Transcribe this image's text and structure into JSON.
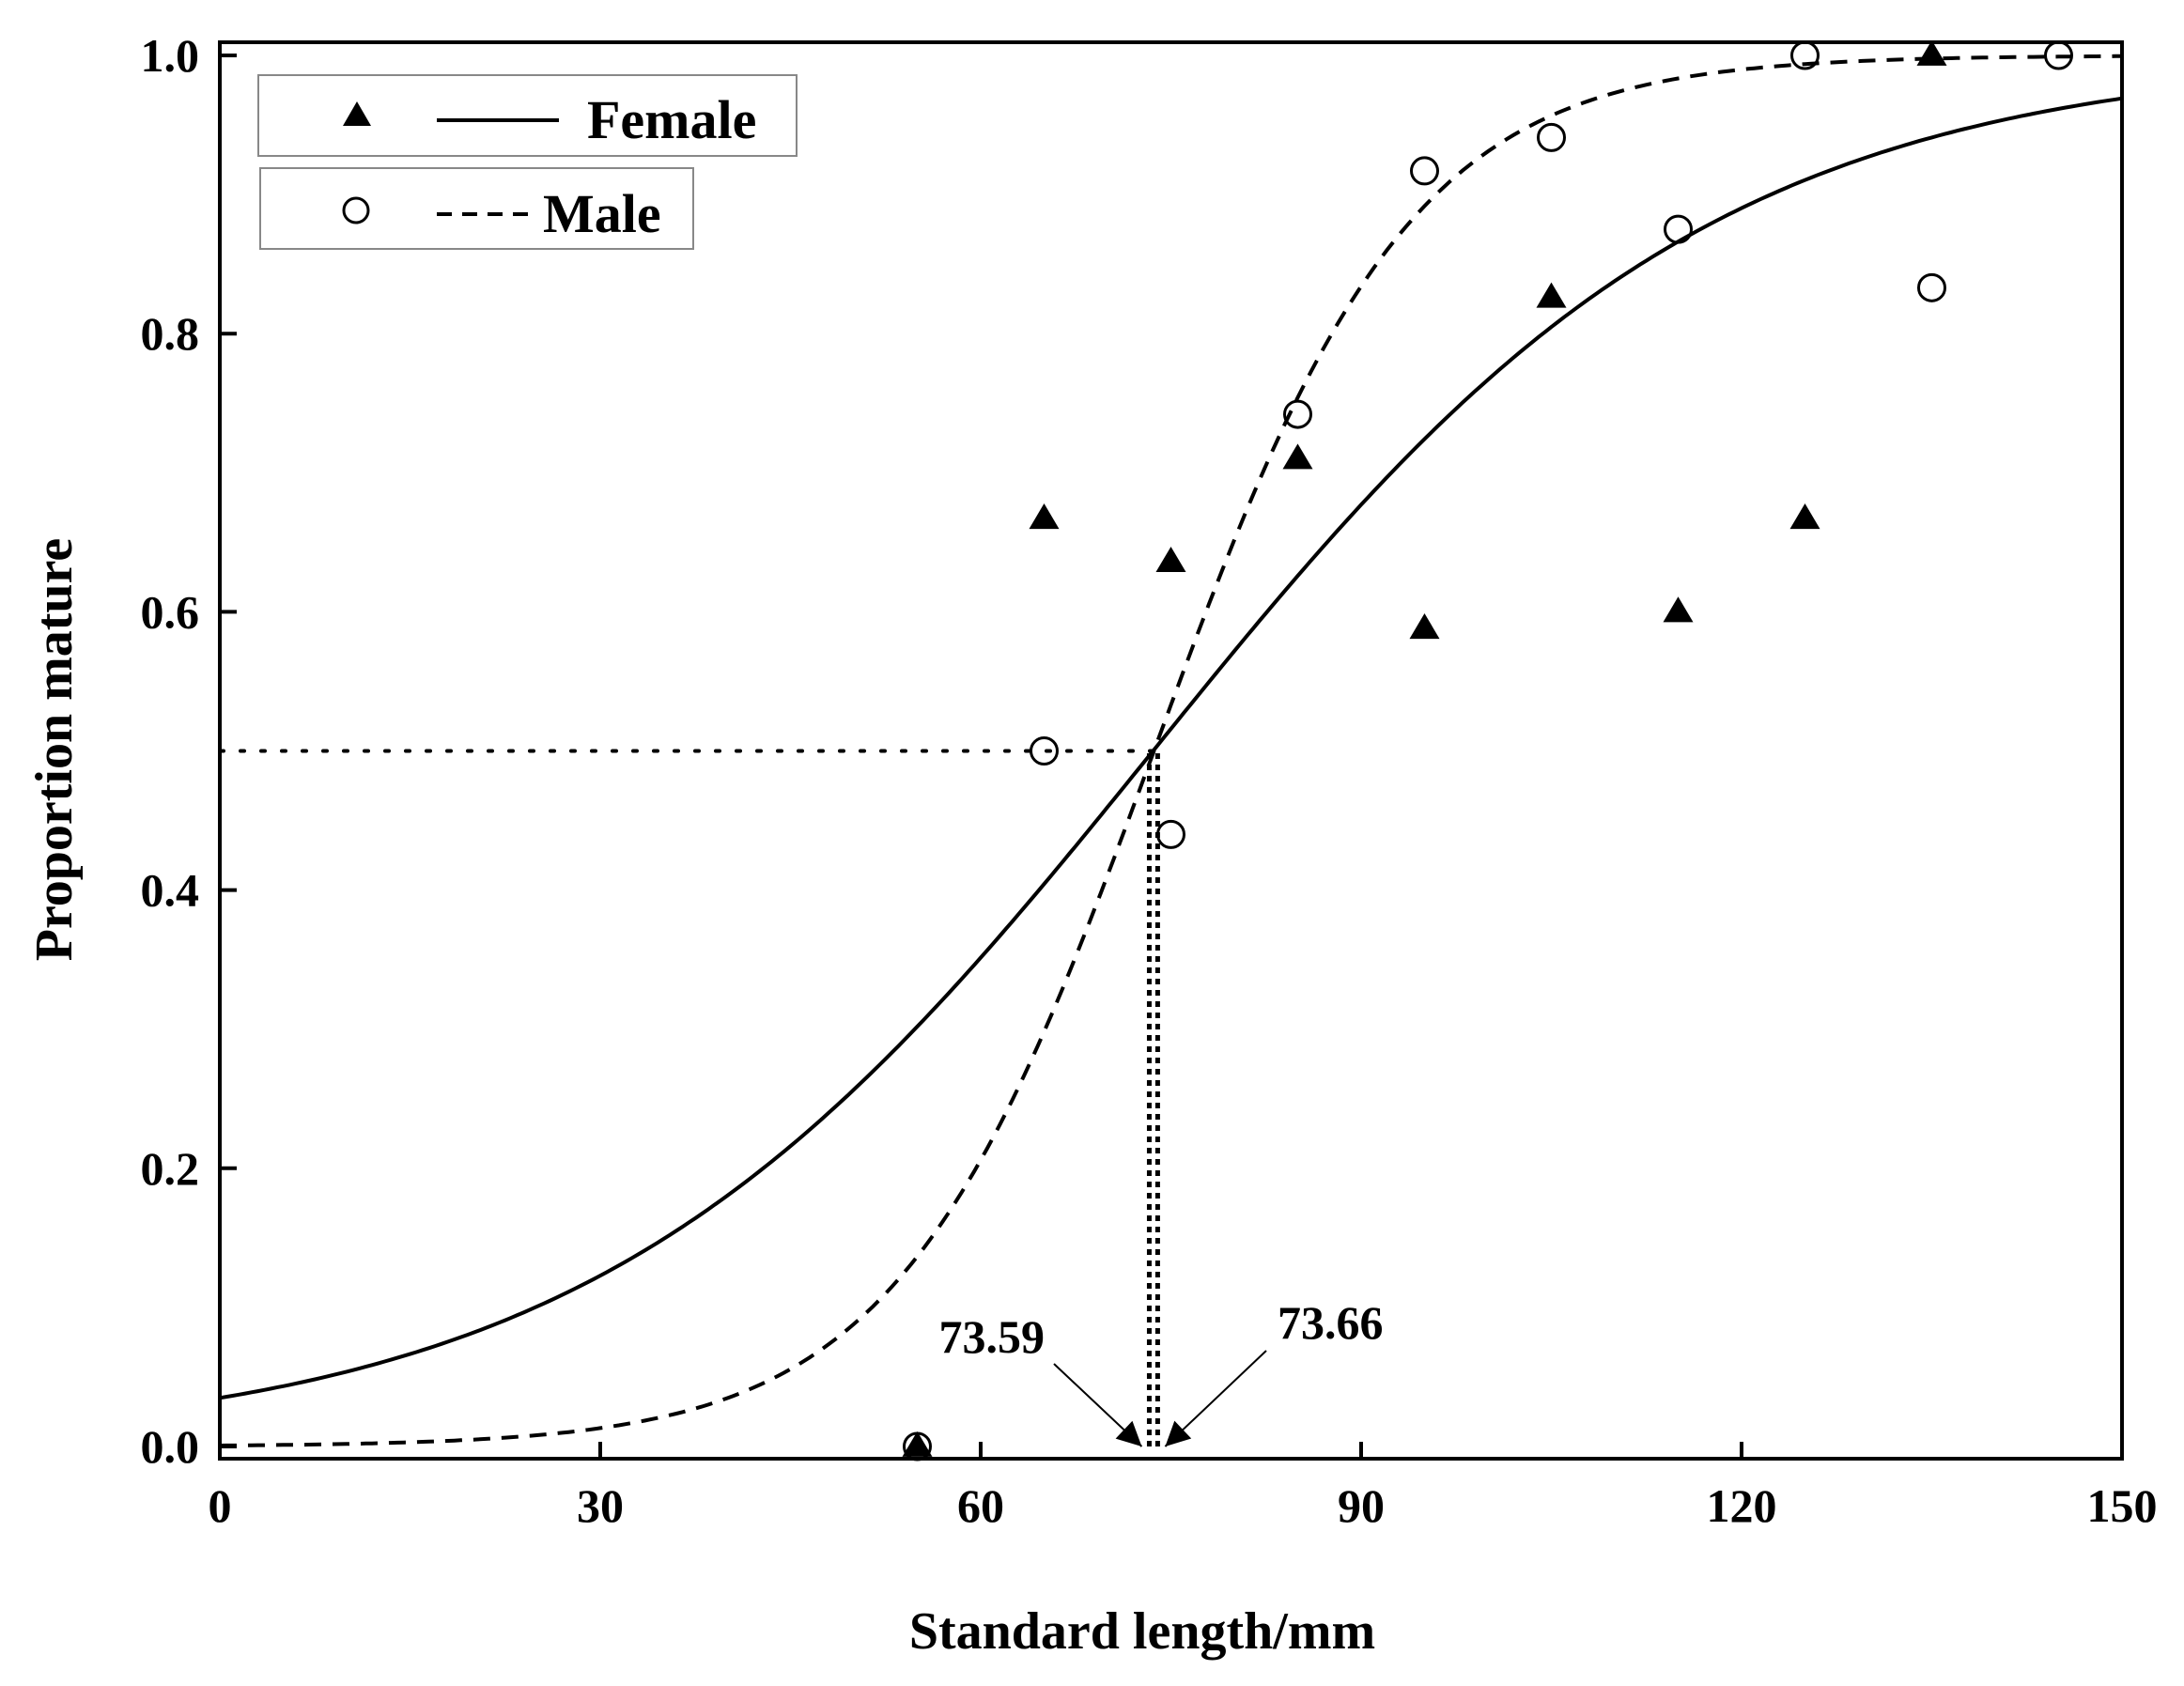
{
  "chart_data": {
    "type": "scatter",
    "title": "",
    "xlabel": "Standard length/mm",
    "ylabel": "Proportion mature",
    "xlim": [
      0,
      150
    ],
    "ylim": [
      0,
      1.0
    ],
    "xticks": [
      0,
      30,
      60,
      90,
      120,
      150
    ],
    "xtick_labels": [
      "0",
      "30",
      "60",
      "90",
      "120",
      "150"
    ],
    "yticks": [
      0,
      0.2,
      0.4,
      0.6,
      0.8,
      1.0
    ],
    "ytick_labels": [
      "0.0",
      "0.2",
      "0.4",
      "0.6",
      "0.8",
      "1.0"
    ],
    "legend_position": "top-left",
    "series": [
      {
        "name": "Female",
        "marker": "filled-triangle",
        "line_style": "solid",
        "x": [
          55,
          65,
          75,
          85,
          95,
          105,
          115,
          125,
          135
        ],
        "y": [
          0.0,
          0.667,
          0.636,
          0.71,
          0.588,
          0.826,
          0.6,
          0.667,
          1.0
        ],
        "fit": {
          "model": "logistic",
          "L50": 73.59,
          "slope": 0.0451
        }
      },
      {
        "name": "Male",
        "marker": "open-circle",
        "line_style": "dashed",
        "x": [
          55,
          65,
          75,
          85,
          95,
          105,
          115,
          125,
          135,
          145
        ],
        "y": [
          0.0,
          0.5,
          0.44,
          0.742,
          0.917,
          0.941,
          0.875,
          1.0,
          0.833,
          1.0
        ],
        "fit": {
          "model": "logistic",
          "L50": 73.66,
          "slope": 0.0988
        }
      }
    ],
    "reference_lines": [
      {
        "type": "horizontal",
        "y": 0.5,
        "x_from": 0,
        "x_to": 73.66,
        "style": "dotted"
      },
      {
        "type": "vertical",
        "x": 73.59,
        "y_from": 0,
        "y_to": 0.5,
        "style": "dotted"
      },
      {
        "type": "vertical",
        "x": 73.66,
        "y_from": 0,
        "y_to": 0.5,
        "style": "dotted"
      }
    ],
    "annotations": [
      {
        "text": "73.59",
        "points_to_x": 73.59,
        "points_to_y": 0
      },
      {
        "text": "73.66",
        "points_to_x": 73.66,
        "points_to_y": 0
      }
    ]
  }
}
